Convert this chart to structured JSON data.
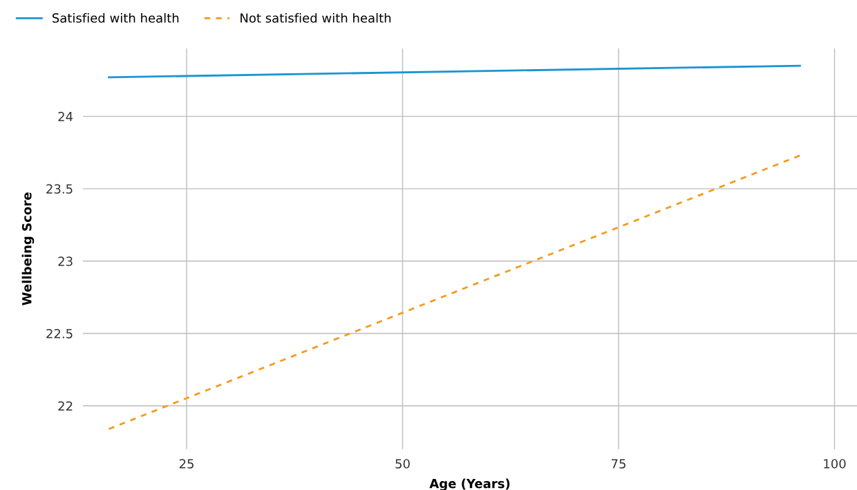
{
  "chart_data": {
    "type": "line",
    "xlabel": "Age (Years)",
    "ylabel": "Wellbeing Score",
    "x": [
      16,
      96
    ],
    "series": [
      {
        "name": "Satisfied with health",
        "color": "#1b95d3",
        "values": [
          24.27,
          24.35
        ],
        "line_style": "solid"
      },
      {
        "name": "Not satisfied with health",
        "color": "#f29b1d",
        "values": [
          21.84,
          23.73
        ],
        "line_style": "dashed"
      }
    ],
    "xlim": [
      13,
      102.6
    ],
    "ylim": [
      21.7,
      24.47
    ],
    "xticks": [
      25,
      50,
      75,
      100
    ],
    "yticks": [
      22,
      22.5,
      23,
      23.5,
      24
    ],
    "grid": true,
    "legend": "top left",
    "marker": "none"
  }
}
